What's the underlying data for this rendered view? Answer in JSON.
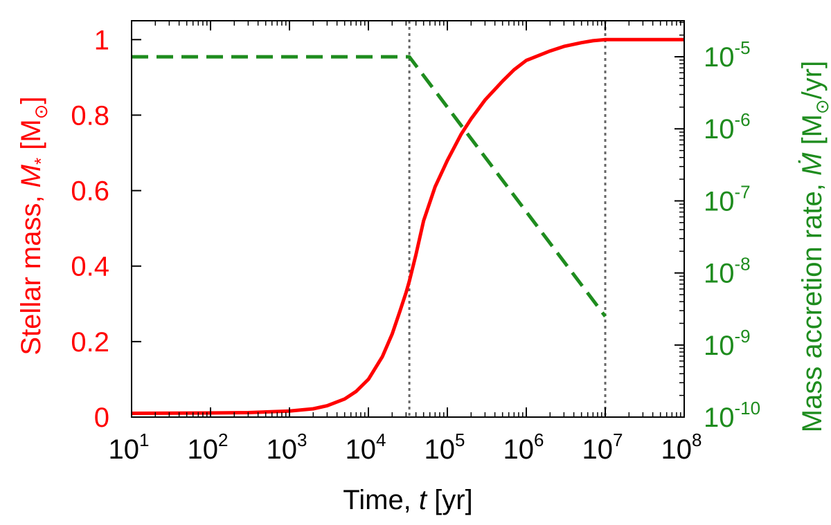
{
  "chart_data": {
    "type": "line",
    "x_axis": {
      "label_parts": [
        "Time, ",
        "t",
        " [yr]"
      ],
      "scale": "log",
      "range": [
        10,
        100000000
      ],
      "tick_labels": [
        {
          "base": "10",
          "exp": "1"
        },
        {
          "base": "10",
          "exp": "2"
        },
        {
          "base": "10",
          "exp": "3"
        },
        {
          "base": "10",
          "exp": "4"
        },
        {
          "base": "10",
          "exp": "5"
        },
        {
          "base": "10",
          "exp": "6"
        },
        {
          "base": "10",
          "exp": "7"
        },
        {
          "base": "10",
          "exp": "8"
        }
      ]
    },
    "y_left": {
      "label_parts": [
        "Stellar mass, ",
        "M",
        "*",
        " [M",
        "⊙",
        "]"
      ],
      "color": "#ff0000",
      "range": [
        0,
        1.05
      ],
      "ticks": [
        0,
        0.2,
        0.4,
        0.6,
        0.8,
        1
      ],
      "tick_labels": [
        "0",
        "0.2",
        "0.4",
        "0.6",
        "0.8",
        "1"
      ]
    },
    "y_right": {
      "label_parts": [
        "Mass accretion rate, ",
        "Ṁ",
        " [M",
        "⊙",
        "/yr]"
      ],
      "color": "#1e8c1e",
      "scale": "log",
      "range": [
        1e-10,
        3.16e-05
      ],
      "tick_labels": [
        {
          "base": "10",
          "exp": "-10"
        },
        {
          "base": "10",
          "exp": "-9"
        },
        {
          "base": "10",
          "exp": "-8"
        },
        {
          "base": "10",
          "exp": "-7"
        },
        {
          "base": "10",
          "exp": "-6"
        },
        {
          "base": "10",
          "exp": "-5"
        }
      ]
    },
    "series": [
      {
        "axis": "left",
        "color": "#ff0000",
        "style": "solid",
        "x": [
          10,
          100,
          300,
          1000,
          2000,
          3000,
          5000,
          7000,
          10000,
          15000,
          20000,
          25000,
          30000,
          33000,
          40000,
          50000,
          70000,
          100000,
          150000,
          200000,
          300000,
          500000,
          700000,
          1000000,
          2000000,
          3000000,
          5000000,
          7000000,
          10000000,
          100000000
        ],
        "y": [
          0.01,
          0.011,
          0.012,
          0.016,
          0.022,
          0.03,
          0.048,
          0.068,
          0.1,
          0.16,
          0.22,
          0.28,
          0.33,
          0.36,
          0.43,
          0.52,
          0.61,
          0.68,
          0.75,
          0.79,
          0.84,
          0.89,
          0.92,
          0.945,
          0.97,
          0.982,
          0.992,
          0.997,
          1.0,
          1.0
        ]
      },
      {
        "axis": "right",
        "color": "#1e8c1e",
        "style": "dashed",
        "x": [
          10,
          33000,
          10000000
        ],
        "y": [
          1e-05,
          1e-05,
          2.5e-09
        ]
      }
    ],
    "vlines": [
      {
        "x": 33000,
        "style": "dotted",
        "color": "#666666"
      },
      {
        "x": 10000000,
        "style": "dotted",
        "color": "#666666"
      }
    ],
    "grid": false,
    "legend": "none"
  }
}
